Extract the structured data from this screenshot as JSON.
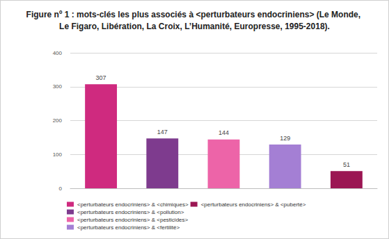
{
  "chart_data": {
    "type": "bar",
    "title": "Figure nº 1 : mots-clés les plus associés à <perturbateurs endocriniens> (Le Monde, Le Figaro, Libération, La Croix, L’Humanité, Europresse, 1995-2018).",
    "categories": [
      "<perturbateurs endocriniens> & <chimiques>",
      "<perturbateurs endocriniens> & <pollution>",
      "<perturbateurs endocriniens> & <pesticides>",
      "<perturbateurs endocriniens> & <fertilité>",
      "<perturbateurs endocriniens> & <puberté>"
    ],
    "values": [
      307,
      147,
      144,
      129,
      51
    ],
    "colors": [
      "#cf2a7f",
      "#7e3b8e",
      "#ed64a8",
      "#a47fd4",
      "#9b1653"
    ],
    "ylim": [
      0,
      400
    ],
    "yticks": [
      0,
      100,
      200,
      300,
      400
    ],
    "grid": true,
    "legend": "bottom",
    "data_labels": true,
    "tick_labels": "y"
  }
}
